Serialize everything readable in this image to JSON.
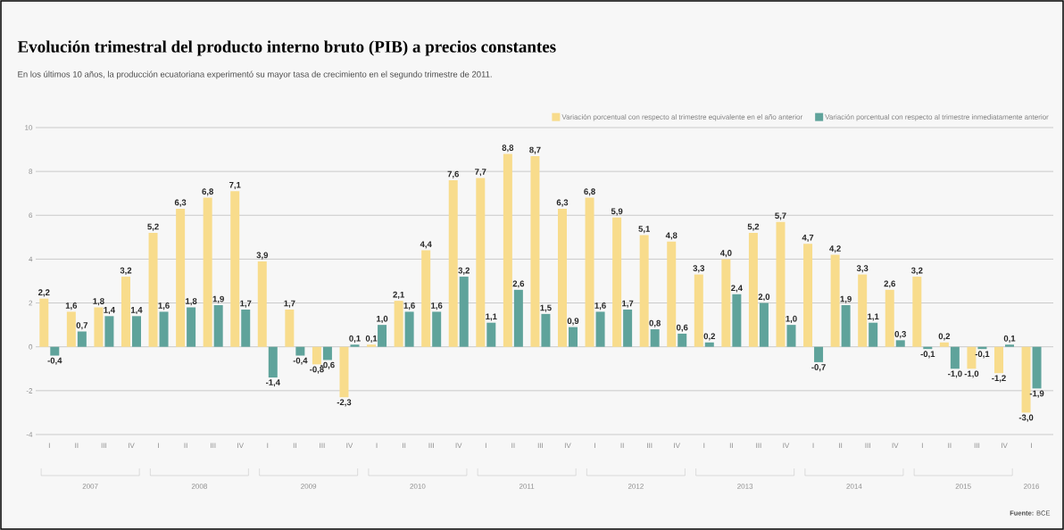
{
  "chart_data": {
    "type": "bar",
    "title": "Evolución trimestral del producto interno bruto (PIB) a precios constantes",
    "subtitle": "En los últimos 10 años, la producción ecuatoriana experimentó su mayor tasa de crecimiento en el segundo trimestre de 2011.",
    "categories": [
      "I",
      "II",
      "III",
      "IV",
      "I",
      "II",
      "III",
      "IV",
      "I",
      "II",
      "III",
      "IV",
      "I",
      "II",
      "III",
      "IV",
      "I",
      "II",
      "III",
      "IV",
      "I",
      "II",
      "III",
      "IV",
      "I",
      "II",
      "III",
      "IV",
      "I",
      "II",
      "III",
      "IV",
      "I",
      "II",
      "III",
      "IV",
      "I"
    ],
    "series": [
      {
        "name": "Variación porcentual con respecto al trimestre equivalente en el año anterior",
        "color": "#f8dc8c",
        "values": [
          2.2,
          1.6,
          1.8,
          3.2,
          5.2,
          6.3,
          6.8,
          7.1,
          3.9,
          1.7,
          -0.8,
          -2.3,
          0.1,
          2.1,
          4.4,
          7.6,
          7.7,
          8.8,
          8.7,
          6.3,
          6.8,
          5.9,
          5.1,
          4.8,
          3.3,
          4.0,
          5.2,
          5.7,
          4.7,
          4.2,
          3.3,
          2.6,
          3.2,
          0.2,
          -1.0,
          -1.2,
          -3.0
        ],
        "value_labels": [
          "2,2",
          "1,6",
          "1,8",
          "3,2",
          "5,2",
          "6,3",
          "6,8",
          "7,1",
          "3,9",
          "1,7",
          "-0,8",
          "-2,3",
          "0,1",
          "2,1",
          "4,4",
          "7,6",
          "7,7",
          "8,8",
          "8,7",
          "6,3",
          "6,8",
          "5,9",
          "5,1",
          "4,8",
          "3,3",
          "4,0",
          "5,2",
          "5,7",
          "4,7",
          "4,2",
          "3,3",
          "2,6",
          "3,2",
          "0,2",
          "-1,0",
          "-1,2",
          "-3,0"
        ]
      },
      {
        "name": "Variación porcentual con respecto al trimestre inmediatamente anterior",
        "color": "#5fa39b",
        "values": [
          -0.4,
          0.7,
          1.4,
          1.4,
          1.6,
          1.8,
          1.9,
          1.7,
          -1.4,
          -0.4,
          -0.6,
          0.1,
          1.0,
          1.6,
          1.6,
          3.2,
          1.1,
          2.6,
          1.5,
          0.9,
          1.6,
          1.7,
          0.8,
          0.6,
          0.2,
          2.4,
          2.0,
          1.0,
          -0.7,
          1.9,
          1.1,
          0.3,
          -0.1,
          -1.0,
          -0.1,
          0.1,
          -1.9
        ],
        "value_labels": [
          "-0,4",
          "0,7",
          "1,4",
          "1,4",
          "1,6",
          "1,8",
          "1,9",
          "1,7",
          "-1,4",
          "-0,4",
          "-0,6",
          "0,1",
          "1,0",
          "1,6",
          "1,6",
          "3,2",
          "1,1",
          "2,6",
          "1,5",
          "0,9",
          "1,6",
          "1,7",
          "0,8",
          "0,6",
          "0,2",
          "2,4",
          "2,0",
          "1,0",
          "-0,7",
          "1,9",
          "1,1",
          "0,3",
          "-0,1",
          "-1,0",
          "-0,1",
          "0,1",
          "-1,9"
        ]
      }
    ],
    "ylim": [
      -4,
      10
    ],
    "yticks": [
      -4,
      -2,
      0,
      2,
      4,
      6,
      8,
      10
    ],
    "grid": "y",
    "legend": "top right",
    "annotations": [
      "2007",
      "2008",
      "2009",
      "2010",
      "2011",
      "2012",
      "2013",
      "2014",
      "2015",
      "2016",
      "**Fuente:** BCE"
    ]
  }
}
